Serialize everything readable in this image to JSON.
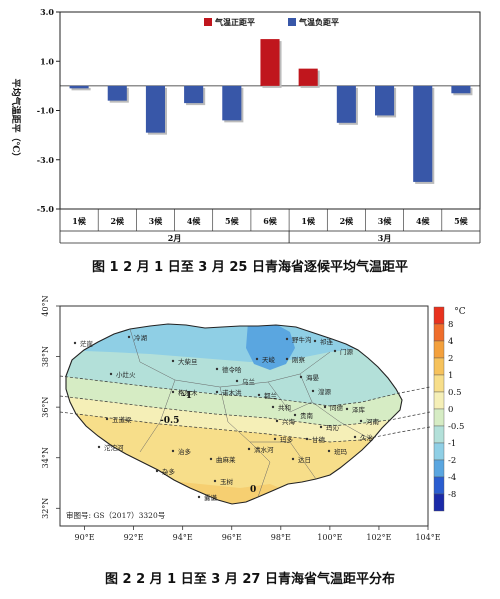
{
  "chart_data": [
    {
      "type": "bar",
      "title": "",
      "ylabel": "平均气温距平（℃）",
      "xlabel": "",
      "ylim": [
        -5.0,
        3.0
      ],
      "yticks": [
        "3.0",
        "1.0",
        "-1.0",
        "-3.0",
        "-5.0"
      ],
      "ytick_values": [
        3,
        1,
        -1,
        -3,
        -5
      ],
      "categories": [
        "1候",
        "2候",
        "3候",
        "4候",
        "5候",
        "6候",
        "1候",
        "2候",
        "3候",
        "4候",
        "5候"
      ],
      "groups": [
        {
          "label": "2月",
          "count": 6
        },
        {
          "label": "3月",
          "count": 5
        }
      ],
      "values": [
        -0.1,
        -0.6,
        -1.9,
        -0.7,
        -1.4,
        1.9,
        0.7,
        -1.5,
        -1.2,
        -3.9,
        -0.3
      ],
      "legend": [
        {
          "name": "气温正距平",
          "color": "#c0161d"
        },
        {
          "name": "气温负距平",
          "color": "#3857a8"
        }
      ],
      "legend_position": "top"
    },
    {
      "type": "heatmap",
      "title": "",
      "xlabels": [
        "90°E",
        "92°E",
        "94°E",
        "96°E",
        "98°E",
        "100°E",
        "102°E",
        "104°E"
      ],
      "xvalues": [
        90,
        92,
        94,
        96,
        98,
        100,
        102,
        104
      ],
      "ylabels": [
        "40°N",
        "38°N",
        "36°N",
        "34°N",
        "32°N"
      ],
      "yvalues": [
        40,
        38,
        36,
        34,
        32
      ],
      "colorbar_unit": "°C",
      "colorbar": [
        {
          "label": "8",
          "color": "#e8321e"
        },
        {
          "label": "4",
          "color": "#ef6d2b"
        },
        {
          "label": "2",
          "color": "#f3a03c"
        },
        {
          "label": "1",
          "color": "#f6c25c"
        },
        {
          "label": "0.5",
          "color": "#f7de8a"
        },
        {
          "label": "0",
          "color": "#f5efb7"
        },
        {
          "label": "-0.5",
          "color": "#d6ecc4"
        },
        {
          "label": "-1",
          "color": "#b3e0d9"
        },
        {
          "label": "-2",
          "color": "#8fcfe5"
        },
        {
          "label": "-4",
          "color": "#5aa6e0"
        },
        {
          "label": "-8",
          "color": "#2a5dd0"
        },
        {
          "label": "",
          "color": "#1a2aa8"
        }
      ],
      "contour_labels": [
        "-1",
        "-0.5",
        "0"
      ],
      "place_names": [
        "茫崖",
        "冷湖",
        "大柴旦",
        "德令哈",
        "天峻",
        "刚察",
        "野牛沟",
        "祁连",
        "门源",
        "小灶火",
        "格尔木",
        "诺木洪",
        "都兰",
        "乌兰",
        "海晏",
        "湟源",
        "共和",
        "贵南",
        "同德",
        "兴海",
        "玛沁",
        "五道梁",
        "沱沱河",
        "治多",
        "杂多",
        "曲麻莱",
        "玉树",
        "囊谦",
        "玛多",
        "达日",
        "久治",
        "班玛",
        "清水河",
        "甘德",
        "泽库",
        "河南"
      ],
      "map_note": "审图号: GS（2017）3320号"
    }
  ],
  "captions": {
    "fig1": "图 1    2 月 1 日至 3 月 25 日青海省逐候平均气温距平",
    "fig2": "图 2    2 月 1 日至 3 月 27 日青海省气温距平分布"
  }
}
